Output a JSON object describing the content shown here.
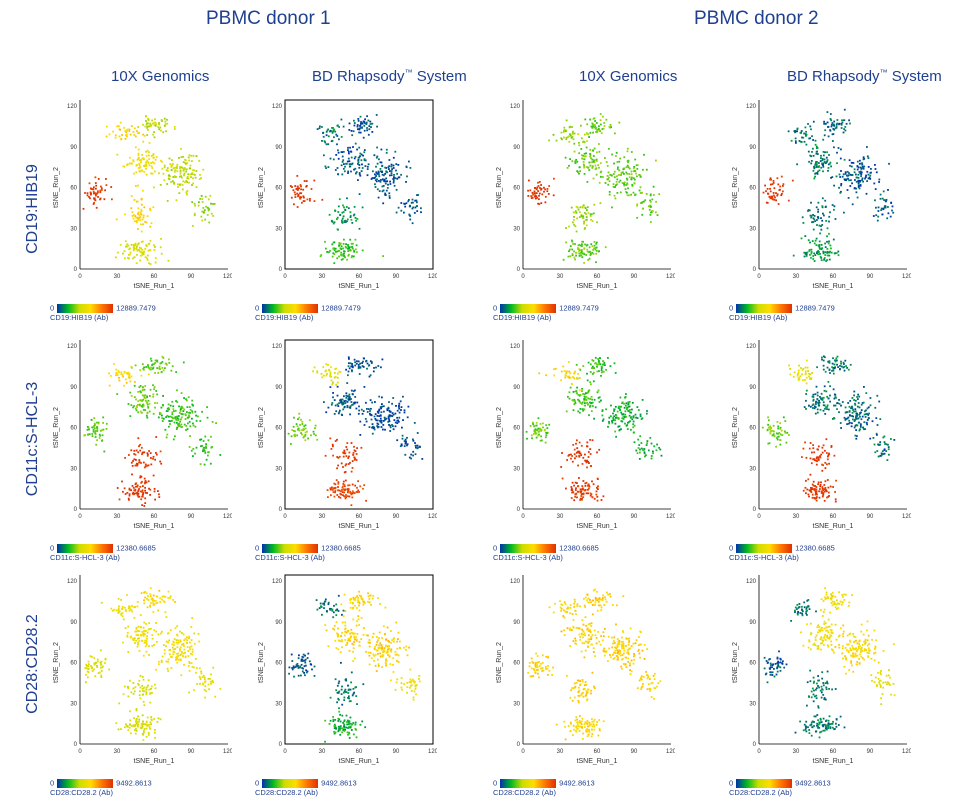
{
  "donors": [
    "PBMC donor 1",
    "PBMC donor 2"
  ],
  "columns": [
    {
      "name": "10X Genomics",
      "tm": ""
    },
    {
      "name": "BD Rhapsody",
      "tm": "™",
      "suffix": " System"
    },
    {
      "name": "10X Genomics",
      "tm": ""
    },
    {
      "name": "BD Rhapsody",
      "tm": "™",
      "suffix": " System"
    }
  ],
  "rows": [
    {
      "marker": "CD19:HIB19",
      "legend_label": "CD19:HIB19 (Ab)",
      "min": "0",
      "max": "12889.7479"
    },
    {
      "marker": "CD11c:S-HCL-3",
      "legend_label": "CD11c:S-HCL-3 (Ab)",
      "min": "0",
      "max": "12380.6685"
    },
    {
      "marker": "CD28:CD28.2",
      "legend_label": "CD28:CD28.2 (Ab)",
      "min": "0",
      "max": "9492.8613"
    }
  ],
  "axes": {
    "xlabel": "tSNE_Run_1",
    "ylabel": "tSNE_Run_2",
    "xticks": [
      "0",
      "30",
      "60",
      "90",
      "120"
    ],
    "yticks": [
      "0",
      "30",
      "60",
      "90",
      "120"
    ]
  },
  "colors": {
    "title": "#1f3f8f",
    "low": "#0033aa",
    "mid_low": "#00bb22",
    "mid": "#ccdd00",
    "mid_high": "#ffdd00",
    "high": "#e03000"
  },
  "chart_data": {
    "type": "scatter",
    "title": "",
    "xlabel": "tSNE_Run_1",
    "ylabel": "tSNE_Run_2",
    "xlim": [
      0,
      120
    ],
    "ylim": [
      0,
      120
    ],
    "color_scale": [
      "#0033aa",
      "#00bb22",
      "#ccdd00",
      "#ffdd00",
      "#ff7700",
      "#e03000"
    ],
    "clusters": [
      {
        "id": "c1",
        "center": [
          12,
          58
        ],
        "spread": [
          9,
          8
        ],
        "weight": 0.1
      },
      {
        "id": "c2",
        "center": [
          50,
          80
        ],
        "spread": [
          12,
          10
        ],
        "weight": 0.16
      },
      {
        "id": "c3",
        "center": [
          48,
          40
        ],
        "spread": [
          10,
          9
        ],
        "weight": 0.1
      },
      {
        "id": "c4",
        "center": [
          80,
          70
        ],
        "spread": [
          14,
          12
        ],
        "weight": 0.24
      },
      {
        "id": "c5",
        "center": [
          48,
          14
        ],
        "spread": [
          12,
          7
        ],
        "weight": 0.16
      },
      {
        "id": "c6",
        "center": [
          60,
          106
        ],
        "spread": [
          12,
          6
        ],
        "weight": 0.1
      },
      {
        "id": "c7",
        "center": [
          35,
          100
        ],
        "spread": [
          10,
          6
        ],
        "weight": 0.07
      },
      {
        "id": "c8",
        "center": [
          100,
          46
        ],
        "spread": [
          8,
          8
        ],
        "weight": 0.07
      }
    ],
    "panels": [
      {
        "row": "CD19:HIB19",
        "column": "10X Genomics",
        "donor": "PBMC donor 1",
        "cluster_levels": {
          "c1": 1.0,
          "c2": 0.55,
          "c3": 0.6,
          "c4": 0.4,
          "c5": 0.45,
          "c6": 0.4,
          "c7": 0.6,
          "c8": 0.35
        }
      },
      {
        "row": "CD19:HIB19",
        "column": "BD Rhapsody System",
        "donor": "PBMC donor 1",
        "cluster_levels": {
          "c1": 1.0,
          "c2": 0.05,
          "c3": 0.15,
          "c4": 0.05,
          "c5": 0.25,
          "c6": 0.05,
          "c7": 0.1,
          "c8": 0.05
        }
      },
      {
        "row": "CD19:HIB19",
        "column": "10X Genomics",
        "donor": "PBMC donor 2",
        "cluster_levels": {
          "c1": 1.0,
          "c2": 0.3,
          "c3": 0.35,
          "c4": 0.3,
          "c5": 0.3,
          "c6": 0.3,
          "c7": 0.35,
          "c8": 0.3
        }
      },
      {
        "row": "CD19:HIB19",
        "column": "BD Rhapsody System",
        "donor": "PBMC donor 2",
        "cluster_levels": {
          "c1": 1.0,
          "c2": 0.1,
          "c3": 0.1,
          "c4": 0.05,
          "c5": 0.15,
          "c6": 0.08,
          "c7": 0.1,
          "c8": 0.05
        }
      },
      {
        "row": "CD11c:S-HCL-3",
        "column": "10X Genomics",
        "donor": "PBMC donor 1",
        "cluster_levels": {
          "c1": 0.3,
          "c2": 0.3,
          "c3": 1.0,
          "c4": 0.25,
          "c5": 1.0,
          "c6": 0.3,
          "c7": 0.6,
          "c8": 0.25
        }
      },
      {
        "row": "CD11c:S-HCL-3",
        "column": "BD Rhapsody System",
        "donor": "PBMC donor 1",
        "cluster_levels": {
          "c1": 0.3,
          "c2": 0.05,
          "c3": 1.0,
          "c4": 0.03,
          "c5": 0.95,
          "c6": 0.05,
          "c7": 0.5,
          "c8": 0.03
        }
      },
      {
        "row": "CD11c:S-HCL-3",
        "column": "10X Genomics",
        "donor": "PBMC donor 2",
        "cluster_levels": {
          "c1": 0.3,
          "c2": 0.25,
          "c3": 1.0,
          "c4": 0.2,
          "c5": 1.0,
          "c6": 0.25,
          "c7": 0.6,
          "c8": 0.2
        }
      },
      {
        "row": "CD11c:S-HCL-3",
        "column": "BD Rhapsody System",
        "donor": "PBMC donor 2",
        "cluster_levels": {
          "c1": 0.3,
          "c2": 0.1,
          "c3": 1.0,
          "c4": 0.08,
          "c5": 1.0,
          "c6": 0.1,
          "c7": 0.5,
          "c8": 0.08
        }
      },
      {
        "row": "CD28:CD28.2",
        "column": "10X Genomics",
        "donor": "PBMC donor 1",
        "cluster_levels": {
          "c1": 0.45,
          "c2": 0.55,
          "c3": 0.45,
          "c4": 0.55,
          "c5": 0.45,
          "c6": 0.6,
          "c7": 0.55,
          "c8": 0.5
        }
      },
      {
        "row": "CD28:CD28.2",
        "column": "BD Rhapsody System",
        "donor": "PBMC donor 1",
        "cluster_levels": {
          "c1": 0.05,
          "c2": 0.6,
          "c3": 0.1,
          "c4": 0.62,
          "c5": 0.2,
          "c6": 0.6,
          "c7": 0.1,
          "c8": 0.55
        }
      },
      {
        "row": "CD28:CD28.2",
        "column": "10X Genomics",
        "donor": "PBMC donor 2",
        "cluster_levels": {
          "c1": 0.6,
          "c2": 0.62,
          "c3": 0.62,
          "c4": 0.62,
          "c5": 0.6,
          "c6": 0.62,
          "c7": 0.6,
          "c8": 0.6
        }
      },
      {
        "row": "CD28:CD28.2",
        "column": "BD Rhapsody System",
        "donor": "PBMC donor 2",
        "cluster_levels": {
          "c1": 0.05,
          "c2": 0.55,
          "c3": 0.1,
          "c4": 0.58,
          "c5": 0.1,
          "c6": 0.55,
          "c7": 0.1,
          "c8": 0.5
        }
      }
    ]
  }
}
